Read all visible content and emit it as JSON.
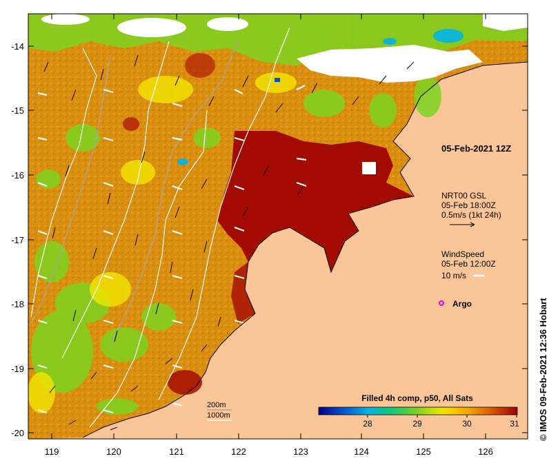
{
  "map": {
    "x_ticks": [
      "119",
      "120",
      "121",
      "122",
      "123",
      "124",
      "125",
      "126"
    ],
    "y_ticks": [
      "-14",
      "-15",
      "-16",
      "-17",
      "-18",
      "-19",
      "-20"
    ],
    "date_label": "05-Feb-2021 12Z",
    "colors": {
      "land": "#fbc697",
      "sst_warm": "#a30a02",
      "sst_mid": "#d98e10",
      "sst_cool": "#6fcf2a",
      "cloud": "#ffffff"
    }
  },
  "legend": {
    "gsl_title": "NRT00 GSL",
    "gsl_time": "05-Feb 18:00Z",
    "gsl_scale": "0.5m/s (1kt 24h)",
    "wind_title": "WindSpeed",
    "wind_time": "05-Feb 12:00Z",
    "wind_scale": "10 m/s",
    "argo_label": "Argo",
    "contour_200": "200m",
    "contour_1000": "1000m"
  },
  "colorbar": {
    "title": "Filled 4h comp, p50, All Sats",
    "ticks": [
      "28",
      "29",
      "30",
      "31"
    ],
    "stops": [
      "#00008b",
      "#0050d0",
      "#00b4e6",
      "#10c878",
      "#7ed321",
      "#f2e600",
      "#f5a800",
      "#d85a00",
      "#a00000"
    ]
  },
  "credit": "© IMOS 09-Feb-2021 12:36 Hobart"
}
